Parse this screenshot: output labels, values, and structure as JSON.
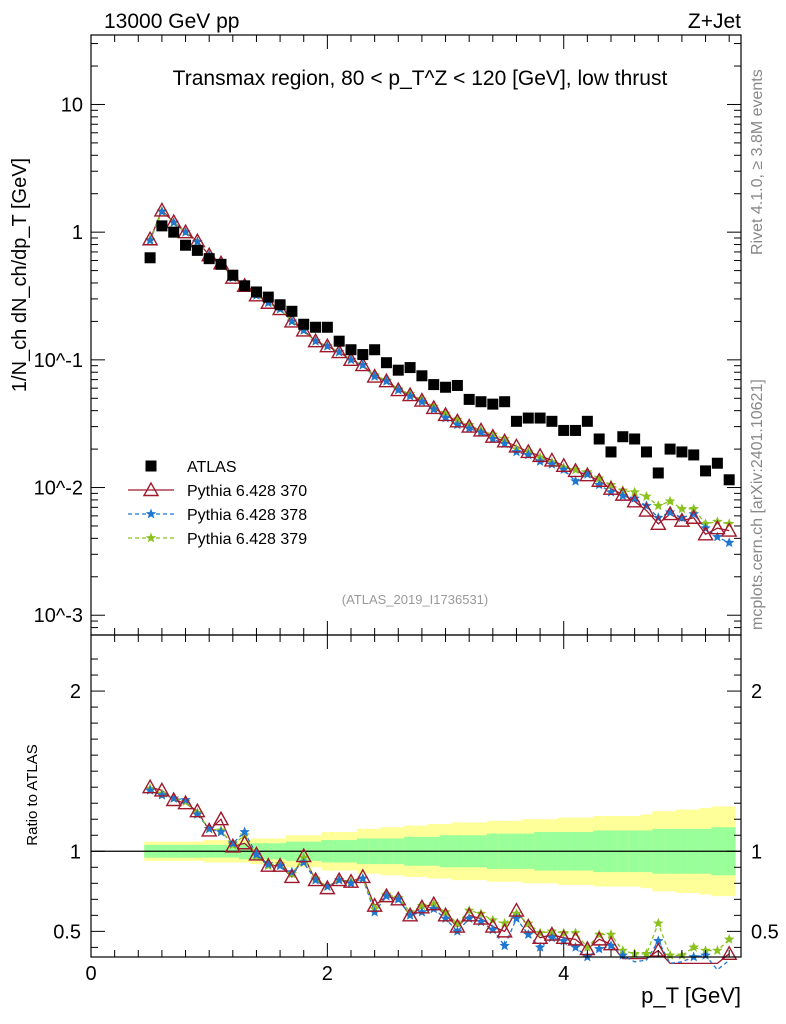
{
  "header": {
    "left": "13000 GeV pp",
    "right": "Z+Jet"
  },
  "side": {
    "upper": "Rivet 4.1.0, ≥ 3.8M events",
    "lower": "mcplots.cern.ch [arXiv:2401.10621]"
  },
  "colors": {
    "atlas": "#000000",
    "p370": "#a0182c",
    "p378": "#1f77d0",
    "p379": "#8bc220",
    "band_syst": "#ffff99",
    "band_stat": "#99ff99"
  },
  "chart_data": [
    {
      "panel": "main",
      "type": "scatter",
      "title": "Transmax region, 80 < p_T^Z < 120 [GeV], low thrust",
      "ylabel": "1/N_ch dN_ch/dp_T [GeV]",
      "yscale": "log",
      "ylim": [
        0.0007,
        35
      ],
      "xlim": [
        0,
        5.5
      ],
      "yticklabels": [
        "10^-3",
        "10^-2",
        "10^-1",
        "1",
        "10"
      ],
      "analysis_label": "(ATLAS_2019_I1736531)",
      "legend": [
        "ATLAS",
        "Pythia 6.428 370",
        "Pythia 6.428 378",
        "Pythia 6.428 379"
      ],
      "x": [
        0.5,
        0.6,
        0.7,
        0.8,
        0.9,
        1.0,
        1.1,
        1.2,
        1.3,
        1.4,
        1.5,
        1.6,
        1.7,
        1.8,
        1.9,
        2.0,
        2.1,
        2.2,
        2.3,
        2.4,
        2.5,
        2.6,
        2.7,
        2.8,
        2.9,
        3.0,
        3.1,
        3.2,
        3.3,
        3.4,
        3.5,
        3.6,
        3.7,
        3.8,
        3.9,
        4.0,
        4.1,
        4.2,
        4.3,
        4.4,
        4.5,
        4.6,
        4.7,
        4.8,
        4.9,
        5.0,
        5.1,
        5.2,
        5.3,
        5.4
      ],
      "series": [
        {
          "name": "ATLAS",
          "values": [
            0.63,
            1.12,
            1.0,
            0.79,
            0.72,
            0.62,
            0.56,
            0.46,
            0.38,
            0.34,
            0.31,
            0.27,
            0.24,
            0.19,
            0.18,
            0.18,
            0.14,
            0.12,
            0.11,
            0.12,
            0.095,
            0.083,
            0.087,
            0.075,
            0.064,
            0.061,
            0.063,
            0.049,
            0.047,
            0.045,
            0.047,
            0.033,
            0.035,
            0.035,
            0.033,
            0.028,
            0.028,
            0.033,
            0.024,
            0.019,
            0.025,
            0.024,
            0.019,
            0.013,
            0.02,
            0.019,
            0.018,
            0.0135,
            0.0155,
            0.0115
          ]
        },
        {
          "name": "Pythia 6.428 370",
          "values": [
            0.88,
            1.48,
            1.2,
            1.0,
            0.85,
            0.66,
            0.57,
            0.44,
            0.38,
            0.32,
            0.28,
            0.25,
            0.2,
            0.17,
            0.14,
            0.128,
            0.115,
            0.1,
            0.091,
            0.074,
            0.068,
            0.058,
            0.053,
            0.048,
            0.042,
            0.037,
            0.033,
            0.03,
            0.028,
            0.025,
            0.023,
            0.021,
            0.019,
            0.0177,
            0.0163,
            0.0148,
            0.0135,
            0.0125,
            0.0113,
            0.0098,
            0.0088,
            0.0078,
            0.0066,
            0.0052,
            0.0062,
            0.0055,
            0.0058,
            0.0043,
            0.0048,
            0.0046
          ]
        },
        {
          "name": "Pythia 6.428 378",
          "values": [
            0.86,
            1.45,
            1.19,
            1.0,
            0.84,
            0.66,
            0.57,
            0.44,
            0.38,
            0.32,
            0.28,
            0.25,
            0.2,
            0.17,
            0.14,
            0.128,
            0.115,
            0.1,
            0.091,
            0.074,
            0.068,
            0.058,
            0.052,
            0.047,
            0.041,
            0.035,
            0.031,
            0.029,
            0.027,
            0.024,
            0.022,
            0.019,
            0.018,
            0.016,
            0.0152,
            0.0138,
            0.0112,
            0.0127,
            0.0105,
            0.0092,
            0.0086,
            0.0082,
            0.0072,
            0.0058,
            0.0064,
            0.0058,
            0.0062,
            0.0048,
            0.0041,
            0.0037
          ]
        },
        {
          "name": "Pythia 6.428 379",
          "values": [
            0.87,
            1.46,
            1.19,
            1.0,
            0.84,
            0.66,
            0.57,
            0.44,
            0.38,
            0.32,
            0.28,
            0.25,
            0.2,
            0.17,
            0.14,
            0.128,
            0.115,
            0.1,
            0.091,
            0.076,
            0.069,
            0.059,
            0.054,
            0.049,
            0.043,
            0.038,
            0.034,
            0.031,
            0.028,
            0.026,
            0.024,
            0.02,
            0.019,
            0.0172,
            0.0158,
            0.0143,
            0.0138,
            0.0132,
            0.0118,
            0.0105,
            0.0095,
            0.0092,
            0.0085,
            0.0072,
            0.0078,
            0.0068,
            0.0068,
            0.0052,
            0.0054,
            0.0052
          ]
        }
      ]
    },
    {
      "panel": "ratio",
      "type": "line",
      "ylabel": "Ratio to ATLAS",
      "xlabel": "p_T [GeV]",
      "ylim": [
        0.34,
        2.35
      ],
      "xlim": [
        0,
        5.5
      ],
      "yticklabels": [
        "0.5",
        "1",
        "2"
      ],
      "xticklabels": [
        "0",
        "2",
        "4"
      ],
      "reference_line": 1,
      "x": [
        0.5,
        0.6,
        0.7,
        0.8,
        0.9,
        1.0,
        1.1,
        1.2,
        1.3,
        1.4,
        1.5,
        1.6,
        1.7,
        1.8,
        1.9,
        2.0,
        2.1,
        2.2,
        2.3,
        2.4,
        2.5,
        2.6,
        2.7,
        2.8,
        2.9,
        3.0,
        3.1,
        3.2,
        3.3,
        3.4,
        3.5,
        3.6,
        3.7,
        3.8,
        3.9,
        4.0,
        4.1,
        4.2,
        4.3,
        4.4,
        4.5,
        4.6,
        4.7,
        4.8,
        4.9,
        5.0,
        5.1,
        5.2,
        5.3,
        5.4
      ],
      "band_stat_halfwidth": [
        0.04,
        0.04,
        0.04,
        0.04,
        0.04,
        0.04,
        0.04,
        0.04,
        0.05,
        0.05,
        0.05,
        0.05,
        0.06,
        0.06,
        0.06,
        0.07,
        0.07,
        0.07,
        0.08,
        0.08,
        0.08,
        0.08,
        0.09,
        0.09,
        0.09,
        0.1,
        0.1,
        0.1,
        0.1,
        0.11,
        0.11,
        0.11,
        0.11,
        0.12,
        0.12,
        0.12,
        0.12,
        0.12,
        0.13,
        0.13,
        0.13,
        0.13,
        0.13,
        0.14,
        0.14,
        0.14,
        0.14,
        0.14,
        0.15,
        0.15
      ],
      "band_syst_halfwidth": [
        0.06,
        0.06,
        0.06,
        0.06,
        0.06,
        0.07,
        0.07,
        0.07,
        0.07,
        0.08,
        0.08,
        0.08,
        0.1,
        0.1,
        0.1,
        0.12,
        0.12,
        0.12,
        0.14,
        0.14,
        0.15,
        0.15,
        0.16,
        0.16,
        0.17,
        0.17,
        0.18,
        0.18,
        0.18,
        0.19,
        0.19,
        0.19,
        0.2,
        0.2,
        0.2,
        0.21,
        0.21,
        0.21,
        0.22,
        0.22,
        0.22,
        0.22,
        0.23,
        0.25,
        0.25,
        0.26,
        0.26,
        0.27,
        0.28,
        0.28
      ],
      "series": [
        {
          "name": "Pythia 6.428 370",
          "values": [
            1.4,
            1.38,
            1.32,
            1.3,
            1.25,
            1.13,
            1.2,
            1.03,
            1.05,
            0.98,
            0.91,
            0.91,
            0.84,
            0.97,
            0.82,
            0.77,
            0.82,
            0.81,
            0.84,
            0.66,
            0.72,
            0.7,
            0.6,
            0.65,
            0.67,
            0.6,
            0.53,
            0.6,
            0.58,
            0.53,
            0.5,
            0.63,
            0.53,
            0.46,
            0.48,
            0.46,
            0.45,
            0.39,
            0.45,
            0.42,
            0.33,
            0.33,
            0.33,
            0.38,
            0.3,
            0.3,
            0.3,
            0.3,
            0.3,
            0.36
          ]
        },
        {
          "name": "Pythia 6.428 378",
          "values": [
            1.38,
            1.35,
            1.33,
            1.32,
            1.23,
            1.14,
            1.12,
            1.05,
            1.12,
            0.98,
            0.92,
            0.91,
            0.87,
            0.93,
            0.82,
            0.78,
            0.82,
            0.8,
            0.83,
            0.62,
            0.72,
            0.7,
            0.6,
            0.62,
            0.64,
            0.58,
            0.5,
            0.58,
            0.56,
            0.51,
            0.41,
            0.58,
            0.48,
            0.4,
            0.46,
            0.44,
            0.4,
            0.34,
            0.39,
            0.41,
            0.35,
            0.31,
            0.32,
            0.44,
            0.3,
            0.31,
            0.34,
            0.35,
            0.26,
            0.32
          ]
        },
        {
          "name": "Pythia 6.428 379",
          "values": [
            1.39,
            1.36,
            1.33,
            1.31,
            1.24,
            1.14,
            1.13,
            1.04,
            1.1,
            0.97,
            0.91,
            0.92,
            0.86,
            0.96,
            0.83,
            0.78,
            0.82,
            0.81,
            0.83,
            0.64,
            0.73,
            0.71,
            0.62,
            0.66,
            0.67,
            0.62,
            0.55,
            0.63,
            0.61,
            0.57,
            0.55,
            0.61,
            0.55,
            0.49,
            0.5,
            0.49,
            0.49,
            0.4,
            0.48,
            0.48,
            0.38,
            0.36,
            0.36,
            0.55,
            0.35,
            0.35,
            0.4,
            0.38,
            0.38,
            0.45
          ]
        }
      ]
    }
  ]
}
